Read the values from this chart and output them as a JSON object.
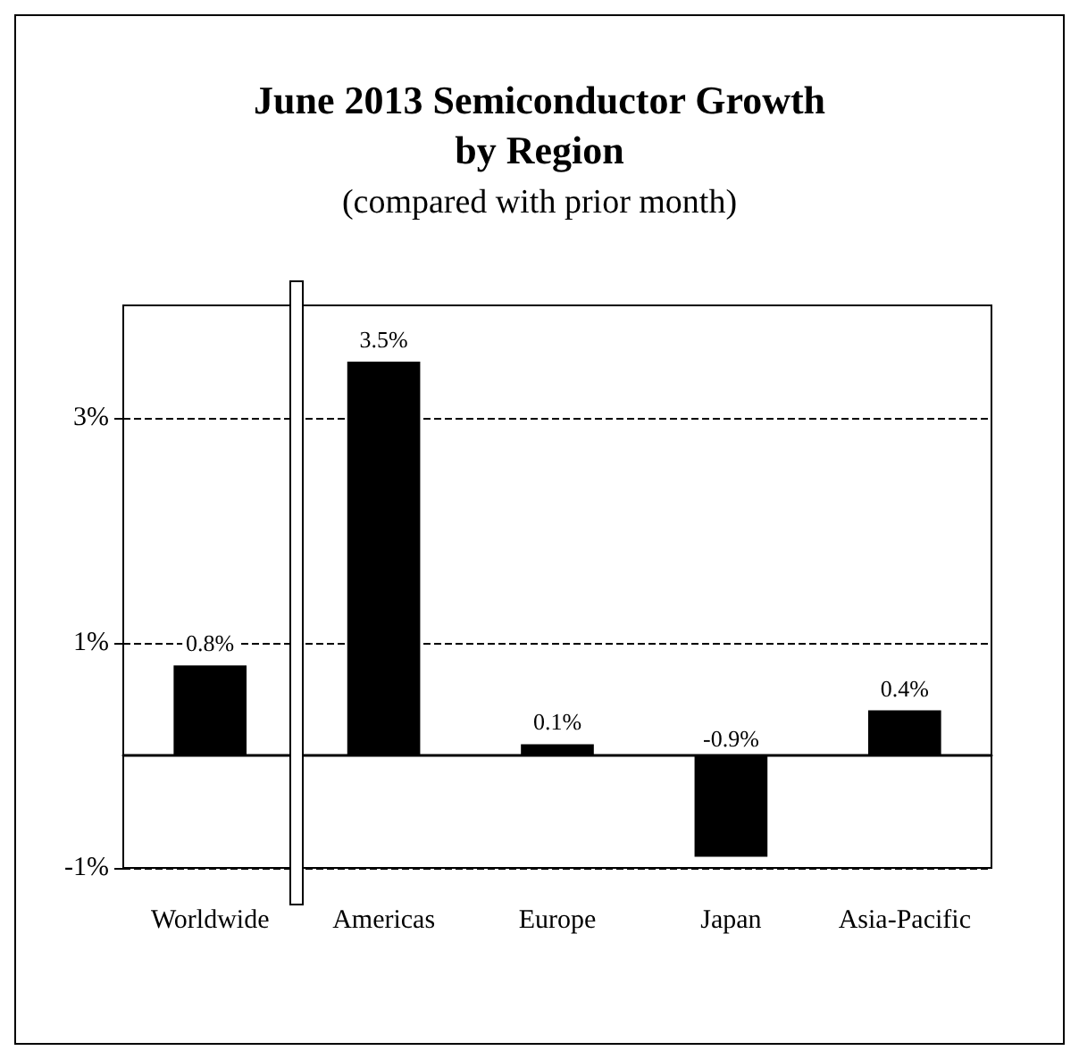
{
  "chart_data": {
    "type": "bar",
    "title": "June 2013 Semiconductor Growth\nby Region",
    "subtitle": "(compared with prior month)",
    "categories": [
      "Worldwide",
      "Americas",
      "Europe",
      "Japan",
      "Asia-Pacific"
    ],
    "values": [
      0.8,
      3.5,
      0.1,
      -0.9,
      0.4
    ],
    "color": "#000000",
    "value_labels": [
      "0.8%",
      "3.5%",
      "0.1%",
      "-0.9%",
      "0.4%"
    ],
    "ylim": [
      -1,
      4
    ],
    "yticks": [
      {
        "value": -1,
        "label": "-1%"
      },
      {
        "value": 1,
        "label": "1%"
      },
      {
        "value": 3,
        "label": "3%"
      }
    ],
    "grid": "y"
  }
}
